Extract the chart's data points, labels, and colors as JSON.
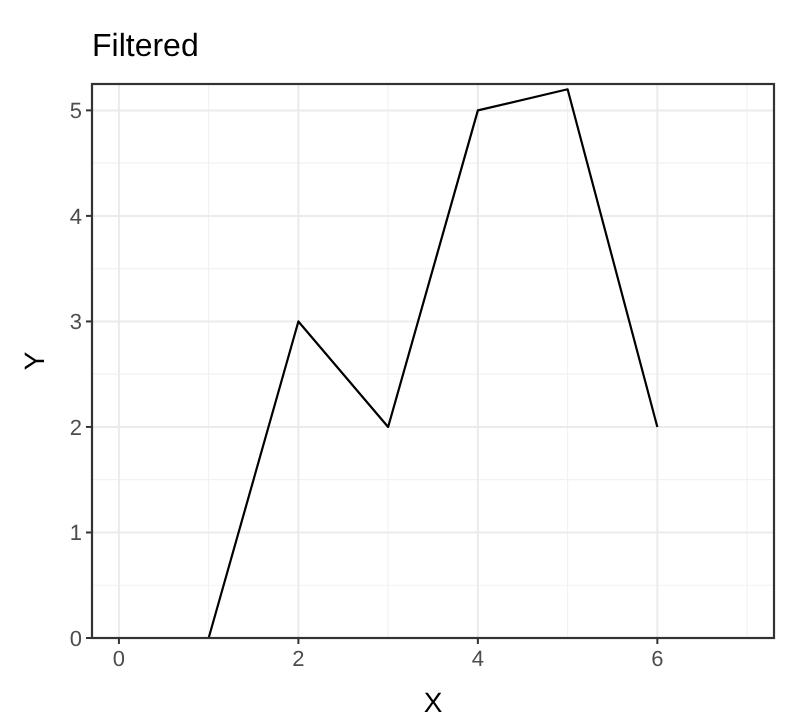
{
  "chart_data": {
    "type": "line",
    "title": "Filtered",
    "xlabel": "X",
    "ylabel": "Y",
    "x": [
      1,
      2,
      3,
      4,
      5,
      6
    ],
    "series": [
      {
        "color": "#000000",
        "values": [
          0,
          3,
          2,
          5,
          5.2,
          2
        ]
      }
    ],
    "xlim": [
      -0.3,
      7.3
    ],
    "xticks": [
      0,
      2,
      4,
      6
    ],
    "ylim": [
      0,
      5.25
    ],
    "yticks": [
      0,
      1,
      2,
      3,
      4,
      5
    ],
    "grid": true,
    "marker": "none",
    "line_style": "solid"
  }
}
